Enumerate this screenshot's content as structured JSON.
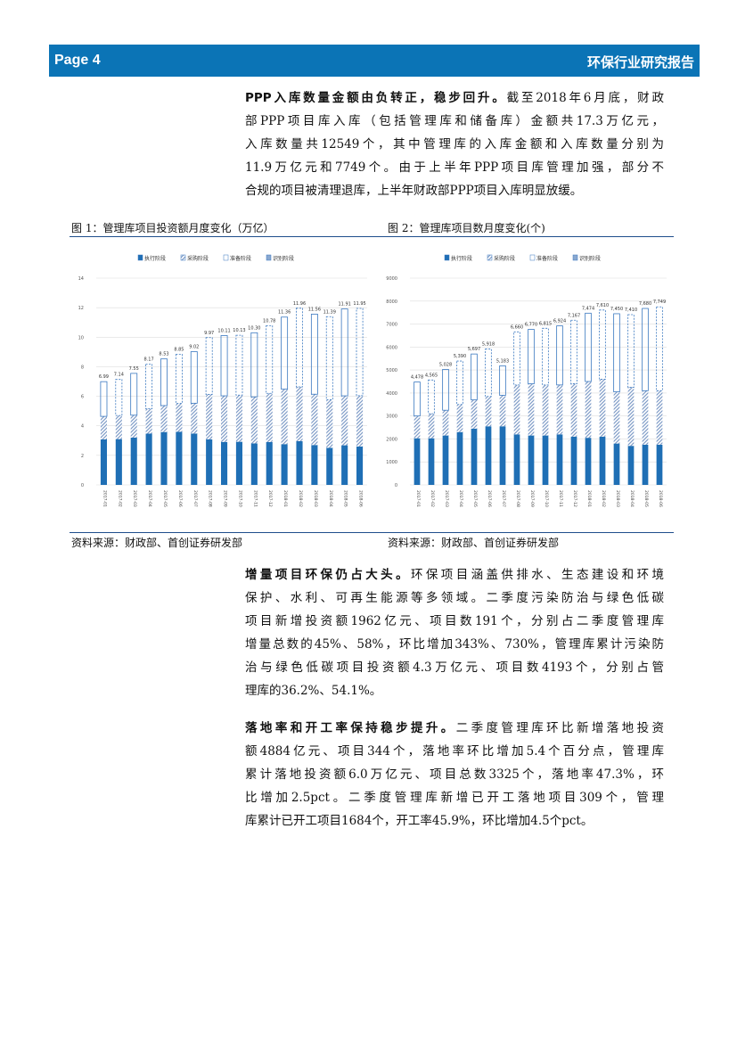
{
  "header": {
    "page": "Page 4",
    "title": "环保行业研究报告"
  },
  "paragraphs": [
    {
      "lead": "PPP入库数量金额由负转正，稳步回升。",
      "lines": [
        "截至2018年6月底，财政",
        "部PPP项目库入库（包括管理库和储备库）金额共17.3万亿元，",
        "入库数量共12549个，其中管理库的入库金额和入库数量分别为",
        "11.9万亿元和7749个。由于上半年PPP项目库管理加强，部分不",
        "合规的项目被清理退库，上半年财政部PPP项目入库明显放缓。"
      ]
    },
    {
      "lead": "增量项目环保仍占大头。",
      "lines": [
        "环保项目涵盖供排水、生态建设和环境",
        "保护、水利、可再生能源等多领域。二季度污染防治与绿色低碳",
        "项目新增投资额1962亿元、项目数191个，分别占二季度管理库",
        "增量总数的45%、58%，环比增加343%、730%，管理库累计污染防",
        "治与绿色低碳项目投资额4.3万亿元、项目数4193个，分别占管",
        "理库的36.2%、54.1%。"
      ]
    },
    {
      "lead": "落地率和开工率保持稳步提升。",
      "lines": [
        "二季度管理库环比新增落地投资",
        "额4884亿元、项目344个，落地率环比增加5.4个百分点，管理库",
        "累计落地投资额6.0万亿元、项目总数3325个，落地率47.3%，环",
        "比增加2.5pct。二季度管理库新增已开工落地项目309个，管理",
        "库累计已开工项目1684个，开工率45.9%，环比增加4.5个pct。"
      ]
    }
  ],
  "figures": [
    {
      "caption": "图 1：管理库项目投资额月度变化（万亿）",
      "source": "资料来源：财政部、首创证券研发部"
    },
    {
      "caption": "图 2：管理库项目数月度变化(个)",
      "source": "资料来源：财政部、首创证券研发部"
    }
  ],
  "colors": {
    "header": "#0b74b6",
    "exec": "#1f6fb5",
    "purchase": "#8aa8d0",
    "prep": "#3a78c0"
  },
  "chart_data": [
    {
      "type": "bar",
      "stacked": true,
      "title": "管理库项目投资额月度变化（万亿）",
      "ylim": [
        0,
        14
      ],
      "yticks": [
        0,
        2,
        4,
        6,
        8,
        10,
        12,
        14
      ],
      "categories": [
        "2017-01",
        "2017-02",
        "2017-03",
        "2017-04",
        "2017-05",
        "2017-06",
        "2017-07",
        "2017-08",
        "2017-09",
        "2017-10",
        "2017-11",
        "2017-12",
        "2018-01",
        "2018-02",
        "2018-03",
        "2018-04",
        "2018-05",
        "2018-06"
      ],
      "legend": [
        "执行阶段",
        "采购阶段",
        "准备阶段",
        "识别阶段"
      ],
      "series": [
        {
          "name": "执行阶段",
          "values": [
            3.08,
            3.1,
            3.2,
            3.47,
            3.58,
            3.6,
            3.48,
            3.09,
            2.91,
            2.92,
            2.81,
            2.9,
            2.76,
            2.96,
            2.7,
            2.51,
            2.68,
            2.6
          ]
        },
        {
          "name": "采购阶段",
          "values": [
            1.56,
            1.6,
            1.52,
            1.68,
            1.79,
            1.92,
            2.05,
            3.04,
            3.12,
            3.16,
            3.15,
            3.3,
            3.72,
            3.68,
            3.44,
            3.26,
            3.35,
            3.44
          ]
        },
        {
          "name": "准备阶段",
          "values": [
            2.34,
            2.41,
            2.8,
            3.0,
            3.14,
            3.3,
            3.46,
            3.81,
            4.05,
            4.02,
            4.31,
            4.55,
            4.85,
            5.29,
            5.39,
            5.59,
            5.85,
            5.88
          ]
        },
        {
          "name": "识别阶段",
          "values": [
            0.01,
            0.03,
            0.03,
            0.02,
            0.02,
            0.03,
            0.03,
            0.03,
            0.03,
            0.03,
            0.03,
            0.03,
            0.03,
            0.03,
            0.03,
            0.03,
            0.03,
            0.03
          ]
        }
      ],
      "totals": [
        "6.99",
        "7.14",
        "7.55",
        "8.17",
        "8.53",
        "8.85",
        "9.02",
        "9.97",
        "10.11",
        "10.13",
        "10.30",
        "10.78",
        "11.36",
        "11.96",
        "11.56",
        "11.39",
        "11.91",
        "11.95"
      ]
    },
    {
      "type": "bar",
      "stacked": true,
      "title": "管理库项目数月度变化(个)",
      "ylim": [
        0,
        9000
      ],
      "yticks": [
        0,
        1000,
        2000,
        3000,
        4000,
        5000,
        6000,
        7000,
        8000,
        9000
      ],
      "categories": [
        "2017-01",
        "2017-02",
        "2017-03",
        "2017-04",
        "2017-05",
        "2017-06",
        "2017-07",
        "2017-08",
        "2017-09",
        "2017-10",
        "2017-11",
        "2017-12",
        "2018-01",
        "2018-02",
        "2018-03",
        "2018-04",
        "2018-05",
        "2018-06"
      ],
      "legend": [
        "执行阶段",
        "采购阶段",
        "准备阶段",
        "识别阶段"
      ],
      "series": [
        {
          "name": "执行阶段",
          "values": [
            2030,
            2030,
            2150,
            2300,
            2450,
            2550,
            2550,
            2200,
            2150,
            2150,
            2200,
            2100,
            2050,
            2100,
            1800,
            1700,
            1750,
            1750
          ]
        },
        {
          "name": "采购阶段",
          "values": [
            970,
            1070,
            1100,
            1200,
            1250,
            1300,
            1350,
            2150,
            2250,
            2200,
            2150,
            2300,
            2450,
            2500,
            2250,
            2550,
            2350,
            2350
          ]
        },
        {
          "name": "准备阶段",
          "values": [
            1450,
            1440,
            1750,
            1870,
            1970,
            2040,
            1250,
            2280,
            2330,
            2430,
            2550,
            2740,
            2950,
            2990,
            3370,
            3130,
            3550,
            3600
          ]
        },
        {
          "name": "识别阶段",
          "values": [
            28,
            25,
            28,
            20,
            27,
            28,
            33,
            30,
            40,
            35,
            24,
            27,
            24,
            20,
            30,
            30,
            30,
            49
          ]
        }
      ],
      "totals": [
        "4,478",
        "4,565",
        "5,028",
        "5,390",
        "5,697",
        "5,918",
        "5,183",
        "6,660",
        "6,770",
        "6,815",
        "6,924",
        "7,167",
        "7,474",
        "7,610",
        "7,450",
        "7,410",
        "7,680",
        "7,749"
      ]
    }
  ]
}
